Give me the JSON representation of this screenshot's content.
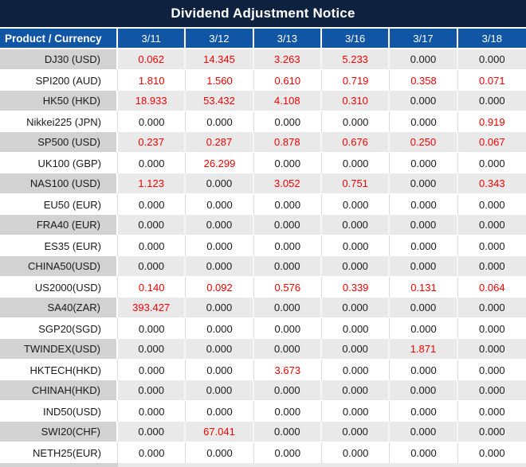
{
  "title": "Dividend Adjustment Notice",
  "colors": {
    "title_bg": "#0e2240",
    "header_bg": "#1155a5",
    "value_red": "#f40000",
    "value_black": "#1a1a1a",
    "stripe_label_bg": "#d2d2d2",
    "stripe_value_bg": "#e9e9e9"
  },
  "chart_data": {
    "type": "table",
    "title": "Dividend Adjustment Notice",
    "label_header": "Product / Currency",
    "date_headers": [
      "3/11",
      "3/12",
      "3/13",
      "3/16",
      "3/17",
      "3/18"
    ],
    "rows": [
      {
        "product": "DJ30 (USD)",
        "values": [
          "0.062",
          "14.345",
          "3.263",
          "5.233",
          "0.000",
          "0.000"
        ],
        "red": [
          true,
          true,
          true,
          true,
          false,
          false
        ]
      },
      {
        "product": "SPI200 (AUD)",
        "values": [
          "1.810",
          "1.560",
          "0.610",
          "0.719",
          "0.358",
          "0.071"
        ],
        "red": [
          true,
          true,
          true,
          true,
          true,
          true
        ]
      },
      {
        "product": "HK50 (HKD)",
        "values": [
          "18.933",
          "53.432",
          "4.108",
          "0.310",
          "0.000",
          "0.000"
        ],
        "red": [
          true,
          true,
          true,
          true,
          false,
          false
        ]
      },
      {
        "product": "Nikkei225 (JPN)",
        "values": [
          "0.000",
          "0.000",
          "0.000",
          "0.000",
          "0.000",
          "0.919"
        ],
        "red": [
          false,
          false,
          false,
          false,
          false,
          true
        ]
      },
      {
        "product": "SP500 (USD)",
        "values": [
          "0.237",
          "0.287",
          "0.878",
          "0.676",
          "0.250",
          "0.067"
        ],
        "red": [
          true,
          true,
          true,
          true,
          true,
          true
        ]
      },
      {
        "product": "UK100 (GBP)",
        "values": [
          "0.000",
          "26.299",
          "0.000",
          "0.000",
          "0.000",
          "0.000"
        ],
        "red": [
          false,
          true,
          false,
          false,
          false,
          false
        ]
      },
      {
        "product": "NAS100 (USD)",
        "values": [
          "1.123",
          "0.000",
          "3.052",
          "0.751",
          "0.000",
          "0.343"
        ],
        "red": [
          true,
          false,
          true,
          true,
          false,
          true
        ]
      },
      {
        "product": "EU50 (EUR)",
        "values": [
          "0.000",
          "0.000",
          "0.000",
          "0.000",
          "0.000",
          "0.000"
        ],
        "red": [
          false,
          false,
          false,
          false,
          false,
          false
        ]
      },
      {
        "product": "FRA40 (EUR)",
        "values": [
          "0.000",
          "0.000",
          "0.000",
          "0.000",
          "0.000",
          "0.000"
        ],
        "red": [
          false,
          false,
          false,
          false,
          false,
          false
        ]
      },
      {
        "product": "ES35 (EUR)",
        "values": [
          "0.000",
          "0.000",
          "0.000",
          "0.000",
          "0.000",
          "0.000"
        ],
        "red": [
          false,
          false,
          false,
          false,
          false,
          false
        ]
      },
      {
        "product": "CHINA50(USD)",
        "values": [
          "0.000",
          "0.000",
          "0.000",
          "0.000",
          "0.000",
          "0.000"
        ],
        "red": [
          false,
          false,
          false,
          false,
          false,
          false
        ]
      },
      {
        "product": "US2000(USD)",
        "values": [
          "0.140",
          "0.092",
          "0.576",
          "0.339",
          "0.131",
          "0.064"
        ],
        "red": [
          true,
          true,
          true,
          true,
          true,
          true
        ]
      },
      {
        "product": "SA40(ZAR)",
        "values": [
          "393.427",
          "0.000",
          "0.000",
          "0.000",
          "0.000",
          "0.000"
        ],
        "red": [
          true,
          false,
          false,
          false,
          false,
          false
        ]
      },
      {
        "product": "SGP20(SGD)",
        "values": [
          "0.000",
          "0.000",
          "0.000",
          "0.000",
          "0.000",
          "0.000"
        ],
        "red": [
          false,
          false,
          false,
          false,
          false,
          false
        ]
      },
      {
        "product": "TWINDEX(USD)",
        "values": [
          "0.000",
          "0.000",
          "0.000",
          "0.000",
          "1.871",
          "0.000"
        ],
        "red": [
          false,
          false,
          false,
          false,
          true,
          false
        ]
      },
      {
        "product": "HKTECH(HKD)",
        "values": [
          "0.000",
          "0.000",
          "3.673",
          "0.000",
          "0.000",
          "0.000"
        ],
        "red": [
          false,
          false,
          true,
          false,
          false,
          false
        ]
      },
      {
        "product": "CHINAH(HKD)",
        "values": [
          "0.000",
          "0.000",
          "0.000",
          "0.000",
          "0.000",
          "0.000"
        ],
        "red": [
          false,
          false,
          false,
          false,
          false,
          false
        ]
      },
      {
        "product": "IND50(USD)",
        "values": [
          "0.000",
          "0.000",
          "0.000",
          "0.000",
          "0.000",
          "0.000"
        ],
        "red": [
          false,
          false,
          false,
          false,
          false,
          false
        ]
      },
      {
        "product": "SWI20(CHF)",
        "values": [
          "0.000",
          "67.041",
          "0.000",
          "0.000",
          "0.000",
          "0.000"
        ],
        "red": [
          false,
          true,
          false,
          false,
          false,
          false
        ]
      },
      {
        "product": "NETH25(EUR)",
        "values": [
          "0.000",
          "0.000",
          "0.000",
          "0.000",
          "0.000",
          "0.000"
        ],
        "red": [
          false,
          false,
          false,
          false,
          false,
          false
        ]
      }
    ]
  }
}
